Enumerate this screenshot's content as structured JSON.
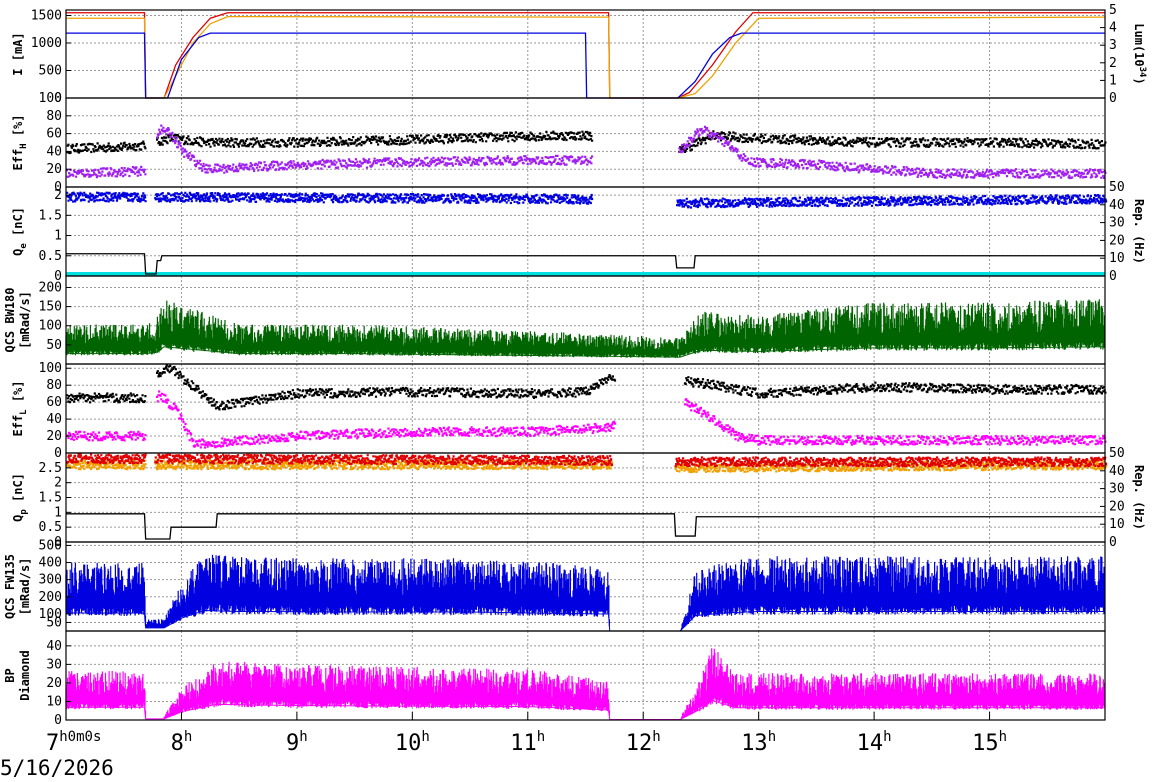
{
  "date_label": "5/16/2026",
  "x_ticks": [
    {
      "hour": 7,
      "label": "7",
      "suffix": "h0m0s"
    },
    {
      "hour": 8,
      "label": "8",
      "suffix": "h"
    },
    {
      "hour": 9,
      "label": "9",
      "suffix": "h"
    },
    {
      "hour": 10,
      "label": "10",
      "suffix": "h"
    },
    {
      "hour": 11,
      "label": "11",
      "suffix": "h"
    },
    {
      "hour": 12,
      "label": "12",
      "suffix": "h"
    },
    {
      "hour": 13,
      "label": "13",
      "suffix": "h"
    },
    {
      "hour": 14,
      "label": "14",
      "suffix": "h"
    },
    {
      "hour": 15,
      "label": "15",
      "suffix": "h"
    }
  ],
  "x_range": [
    7.0,
    16.0
  ],
  "colors": {
    "red": "#e00000",
    "orange": "#f0a000",
    "blue": "#0000e0",
    "black": "#000000",
    "purple": "#a020f0",
    "cyan": "#00e0e0",
    "green": "#006400",
    "gray": "#707070",
    "magenta": "#ff00ff"
  },
  "chart_data": [
    {
      "type": "line",
      "ylabel": "I [mA]",
      "ylabel_right": "Lum(10^34)",
      "ylabel_right_parts": {
        "main": "Lum(10",
        "sup": "34",
        "close": ")"
      },
      "ylim": [
        0,
        1600
      ],
      "yticks": [
        "0",
        "500",
        "1000",
        "1500"
      ],
      "ylim_right": [
        0,
        5
      ],
      "yticks_right": [
        "0",
        "1",
        "2",
        "3",
        "4",
        "5"
      ],
      "grid": true,
      "series": [
        {
          "color": "red",
          "x": [
            7.0,
            7.68,
            7.69,
            7.85,
            7.95,
            8.1,
            8.25,
            8.4,
            11.7,
            11.71,
            12.3,
            12.4,
            12.6,
            12.8,
            12.95,
            16.0
          ],
          "y": [
            1550,
            1550,
            0,
            0,
            600,
            1100,
            1450,
            1550,
            1550,
            0,
            0,
            100,
            600,
            1200,
            1550,
            1550
          ]
        },
        {
          "color": "orange",
          "x": [
            7.0,
            7.68,
            7.69,
            7.85,
            7.95,
            8.1,
            8.25,
            8.4,
            11.7,
            11.71,
            12.3,
            12.45,
            12.6,
            12.8,
            13.0,
            16.0
          ],
          "y": [
            1450,
            1450,
            0,
            0,
            400,
            1000,
            1350,
            1480,
            1470,
            0,
            0,
            80,
            400,
            1000,
            1450,
            1470
          ]
        },
        {
          "color": "blue",
          "x": [
            7.0,
            7.68,
            7.69,
            7.88,
            8.0,
            8.15,
            8.25,
            11.5,
            11.51,
            12.3,
            12.45,
            12.6,
            12.75,
            12.85,
            16.0
          ],
          "y": [
            1180,
            1180,
            0,
            0,
            700,
            1100,
            1180,
            1180,
            0,
            0,
            300,
            800,
            1100,
            1180,
            1180
          ]
        }
      ]
    },
    {
      "type": "scatter",
      "ylabel": "EffH [%]",
      "ylabel_parts": {
        "main": "Eff",
        "sub": "H",
        "unit": " [%]"
      },
      "ylim": [
        0,
        100
      ],
      "yticks": [
        "0",
        "20",
        "40",
        "60",
        "80",
        "100"
      ],
      "grid": true,
      "series": [
        {
          "color": "black",
          "x": [
            7.0,
            7.5,
            7.68,
            7.9,
            8.2,
            9.0,
            10.0,
            11.0,
            11.5,
            12.3,
            12.6,
            12.9,
            13.5,
            14.0,
            15.0,
            16.0
          ],
          "y": [
            43,
            45,
            47,
            55,
            50,
            50,
            53,
            57,
            58,
            40,
            58,
            55,
            52,
            50,
            50,
            48
          ]
        },
        {
          "color": "purple",
          "x": [
            7.0,
            7.5,
            7.68,
            7.8,
            7.9,
            8.0,
            8.2,
            9.0,
            10.0,
            11.0,
            11.5,
            12.3,
            12.5,
            12.7,
            12.9,
            13.5,
            14.5,
            15.0,
            16.0
          ],
          "y": [
            15,
            17,
            18,
            65,
            60,
            40,
            20,
            25,
            28,
            30,
            30,
            40,
            65,
            50,
            28,
            25,
            15,
            15,
            15
          ]
        }
      ]
    },
    {
      "type": "scatter",
      "ylabel": "Qe [nC]",
      "ylabel_parts": {
        "main": "Q",
        "sub": "e",
        "unit": " [nC]"
      },
      "ylabel_right": "Rep. (Hz)",
      "ylim": [
        0,
        2.2
      ],
      "yticks": [
        "0",
        "0.5",
        "1",
        "1.5",
        "2"
      ],
      "ylim_right": [
        0,
        50
      ],
      "yticks_right": [
        "0",
        "10",
        "20",
        "30",
        "40",
        "50"
      ],
      "grid": true,
      "series": [
        {
          "color": "blue",
          "x": [
            7.0,
            7.68,
            7.76,
            11.5,
            12.28,
            16.0
          ],
          "y": [
            1.95,
            1.95,
            1.95,
            1.9,
            1.8,
            1.9
          ]
        },
        {
          "color": "cyan",
          "x": [
            7.0,
            16.0
          ],
          "y": [
            0.05,
            0.05
          ]
        },
        {
          "color": "black",
          "x": [
            7.0,
            7.68,
            7.69,
            7.78,
            7.79,
            7.82,
            7.83,
            12.28,
            12.29,
            12.44,
            12.45,
            16.0
          ],
          "y": [
            0.55,
            0.55,
            0.05,
            0.05,
            0.38,
            0.38,
            0.5,
            0.5,
            0.2,
            0.2,
            0.5,
            0.5
          ]
        }
      ]
    },
    {
      "type": "area",
      "ylabel": "QCS BW180 [mRad/s]",
      "ylabel_lines": [
        "QCS BW180",
        "[mRad/s]"
      ],
      "ylim": [
        0,
        230
      ],
      "yticks": [
        "50",
        "100",
        "150",
        "200"
      ],
      "grid": true,
      "series": [
        {
          "color": "green",
          "x": [
            7.0,
            7.68,
            7.78,
            7.85,
            8.5,
            9.5,
            10.5,
            11.5,
            12.32,
            12.5,
            13.0,
            14.0,
            15.0,
            16.0
          ],
          "y": [
            90,
            90,
            100,
            150,
            90,
            90,
            80,
            70,
            60,
            120,
            110,
            140,
            140,
            150
          ]
        }
      ]
    },
    {
      "type": "scatter",
      "ylabel": "EffL [%]",
      "ylabel_parts": {
        "main": "Eff",
        "sub": "L",
        "unit": " [%]"
      },
      "ylim": [
        0,
        105
      ],
      "yticks": [
        "0",
        "20",
        "40",
        "60",
        "80",
        "100"
      ],
      "grid": true,
      "series": [
        {
          "color": "black",
          "x": [
            7.0,
            7.68,
            7.8,
            7.9,
            8.3,
            9.0,
            10.0,
            11.0,
            11.5,
            11.7,
            12.35,
            12.6,
            13.0,
            14.0,
            15.0,
            16.0
          ],
          "y": [
            65,
            65,
            95,
            100,
            55,
            70,
            72,
            70,
            72,
            90,
            85,
            80,
            70,
            78,
            75,
            75
          ]
        },
        {
          "color": "magenta",
          "x": [
            7.0,
            7.68,
            7.8,
            7.95,
            8.1,
            9.0,
            10.0,
            11.0,
            11.7,
            12.35,
            12.6,
            12.8,
            13.0,
            14.0,
            15.0,
            16.0
          ],
          "y": [
            20,
            20,
            70,
            50,
            10,
            20,
            25,
            25,
            30,
            60,
            40,
            20,
            15,
            15,
            15,
            15
          ]
        }
      ]
    },
    {
      "type": "scatter",
      "ylabel": "Qp [nC]",
      "ylabel_parts": {
        "main": "Q",
        "sub": "p",
        "unit": " [nC]"
      },
      "ylabel_right": "Rep. (Hz)",
      "ylim": [
        0,
        3
      ],
      "yticks": [
        "0",
        "0.5",
        "1",
        "1.5",
        "2",
        "2.5"
      ],
      "ylim_right": [
        0,
        50
      ],
      "yticks_right": [
        "0",
        "10",
        "20",
        "30",
        "40",
        "50"
      ],
      "grid": true,
      "series": [
        {
          "color": "orange",
          "x": [
            7.0,
            7.68,
            7.76,
            11.7,
            12.27,
            16.0
          ],
          "y": [
            2.6,
            2.6,
            2.6,
            2.6,
            2.5,
            2.6
          ]
        },
        {
          "color": "red",
          "x": [
            7.0,
            7.68,
            7.76,
            11.7,
            12.27,
            16.0
          ],
          "y": [
            2.8,
            2.8,
            2.8,
            2.75,
            2.7,
            2.7
          ]
        },
        {
          "color": "black",
          "x": [
            7.0,
            7.68,
            7.69,
            7.9,
            7.91,
            8.3,
            8.31,
            12.27,
            12.28,
            12.45,
            12.46,
            16.0
          ],
          "y": [
            0.95,
            0.95,
            0.1,
            0.1,
            0.5,
            0.5,
            0.95,
            0.95,
            0.2,
            0.2,
            0.85,
            0.85
          ]
        }
      ]
    },
    {
      "type": "area",
      "ylabel": "QCS FW135 [mRad/s]",
      "ylabel_lines": [
        "QCS FW135",
        "[mRad/s]"
      ],
      "ylim": [
        0,
        520
      ],
      "yticks": [
        "50",
        "100",
        "200",
        "300",
        "400",
        "500"
      ],
      "grid": true,
      "series": [
        {
          "color": "blue",
          "x": [
            7.0,
            7.68,
            7.69,
            7.85,
            8.0,
            8.2,
            8.5,
            9.5,
            10.5,
            11.7,
            11.71,
            12.32,
            12.45,
            12.7,
            13.0,
            14.0,
            15.0,
            16.0
          ],
          "y": [
            350,
            350,
            60,
            60,
            250,
            400,
            380,
            370,
            370,
            330,
            0,
            0,
            300,
            350,
            380,
            380,
            380,
            380
          ]
        }
      ]
    },
    {
      "type": "area",
      "ylabel": "BP Diamond",
      "ylabel_lines": [
        "BP",
        "Diamond"
      ],
      "ylim": [
        0,
        48
      ],
      "yticks": [
        "0",
        "10",
        "20",
        "30",
        "40"
      ],
      "grid": true,
      "series": [
        {
          "color": "magenta",
          "x": [
            7.0,
            7.68,
            7.69,
            7.85,
            8.0,
            8.3,
            9.0,
            10.0,
            11.0,
            11.5,
            11.7,
            11.71,
            12.32,
            12.5,
            12.6,
            12.8,
            13.0,
            14.0,
            15.0,
            16.0
          ],
          "y": [
            23,
            23,
            2,
            2,
            15,
            28,
            26,
            25,
            24,
            20,
            18,
            1,
            1,
            20,
            35,
            22,
            22,
            22,
            22,
            22
          ]
        }
      ]
    }
  ]
}
